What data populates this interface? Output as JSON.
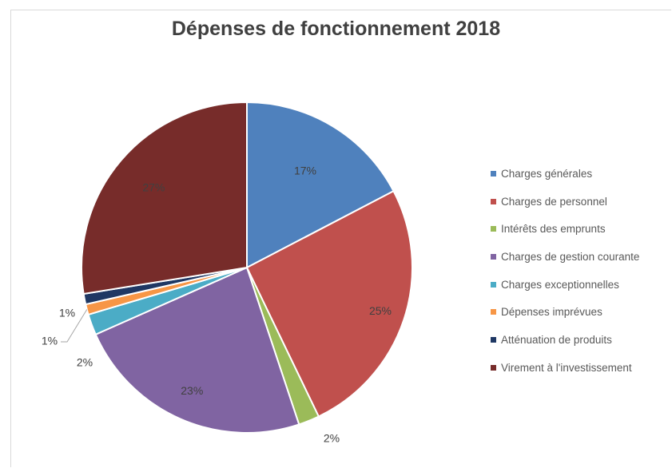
{
  "chart_data": {
    "type": "pie",
    "title": "Dépenses de fonctionnement 2018",
    "categories": [
      "Charges générales",
      "Charges de personnel",
      "Intérêts des emprunts",
      "Charges de gestion courante",
      "Charges exceptionnelles",
      "Dépenses imprévues",
      "Atténuation de produits",
      "Virement à l'investissement"
    ],
    "values": [
      17,
      25,
      2,
      23,
      2,
      1,
      1,
      27
    ],
    "labels": [
      "17%",
      "25%",
      "2%",
      "23%",
      "2%",
      "1%",
      "1%",
      "27%"
    ],
    "colors": [
      "#4f81bd",
      "#c0504d",
      "#9bbb59",
      "#8064a2",
      "#4bacc6",
      "#f79646",
      "#1f3864",
      "#772c2a"
    ],
    "legend_position": "right"
  }
}
